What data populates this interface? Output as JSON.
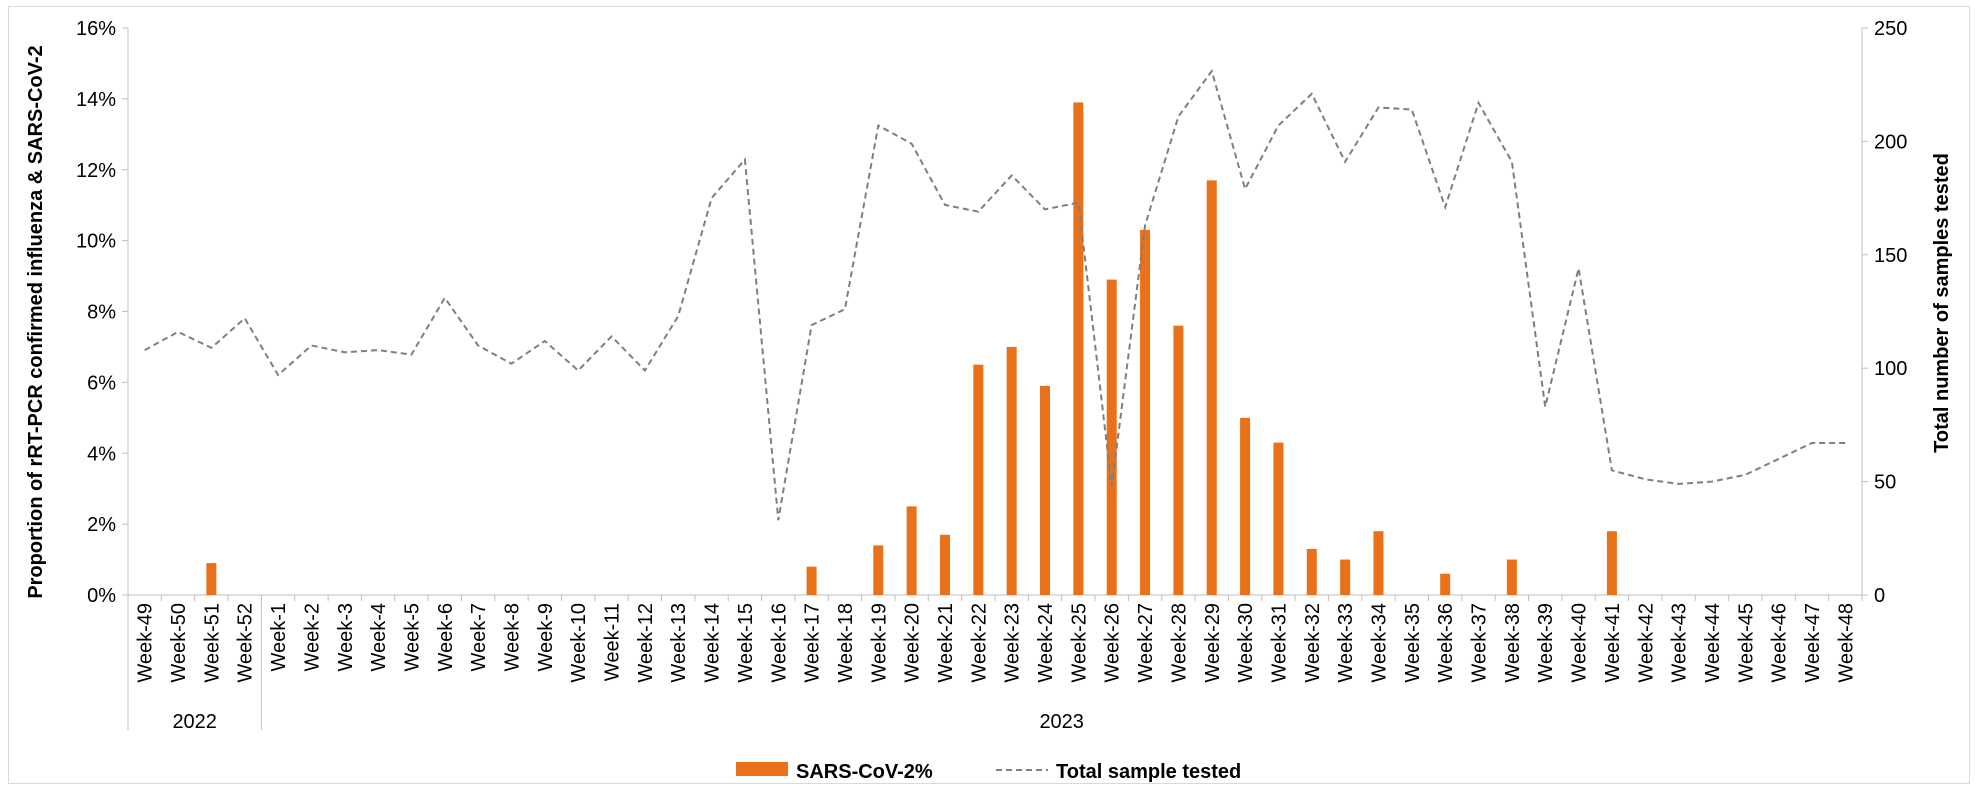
{
  "chart_data": {
    "type": "bar",
    "title": "",
    "ylabel": "Proportion of rRT-PCR confirmed influenza & SARS-CoV-2",
    "y2label": "Total number of samples tested",
    "ylim": [
      0,
      16
    ],
    "y2lim": [
      0,
      250
    ],
    "y_ticks": [
      "0%",
      "2%",
      "4%",
      "6%",
      "8%",
      "10%",
      "12%",
      "14%",
      "16%"
    ],
    "y2_ticks": [
      "0",
      "50",
      "100",
      "150",
      "200",
      "250"
    ],
    "categories": [
      "Week-49",
      "Week-50",
      "Week-51",
      "Week-52",
      "Week-1",
      "Week-2",
      "Week-3",
      "Week-4",
      "Week-5",
      "Week-6",
      "Week-7",
      "Week-8",
      "Week-9",
      "Week-10",
      "Week-11",
      "Week-12",
      "Week-13",
      "Week-14",
      "Week-15",
      "Week-16",
      "Week-17",
      "Week-18",
      "Week-19",
      "Week-20",
      "Week-21",
      "Week-22",
      "Week-23",
      "Week-24",
      "Week-25",
      "Week-26",
      "Week-27",
      "Week-28",
      "Week-29",
      "Week-30",
      "Week-31",
      "Week-32",
      "Week-33",
      "Week-34",
      "Week-35",
      "Week-36",
      "Week-37",
      "Week-38",
      "Week-39",
      "Week-40",
      "Week-41",
      "Week-42",
      "Week-43",
      "Week-44",
      "Week-45",
      "Week-46",
      "Week-47",
      "Week-48"
    ],
    "year_groups": [
      {
        "label": "2022",
        "count": 4
      },
      {
        "label": "2023",
        "count": 48
      }
    ],
    "series": [
      {
        "name": "SARS-CoV-2%",
        "type": "bar",
        "axis": "left",
        "color": "#E8711A",
        "values": [
          0,
          0,
          0.9,
          0,
          0,
          0,
          0,
          0,
          0,
          0,
          0,
          0,
          0,
          0,
          0,
          0,
          0,
          0,
          0,
          0,
          0.8,
          0,
          1.4,
          2.5,
          1.7,
          6.5,
          7.0,
          5.9,
          13.9,
          8.9,
          10.3,
          7.6,
          11.7,
          5.0,
          4.3,
          1.3,
          1.0,
          1.8,
          0,
          0.6,
          0,
          1.0,
          0,
          0,
          1.8,
          0,
          0,
          0,
          0,
          0,
          0,
          0
        ]
      },
      {
        "name": "Total sample tested",
        "type": "line",
        "axis": "right",
        "color": "#7F7F7F",
        "values": [
          108,
          116,
          109,
          122,
          97,
          110,
          107,
          108,
          106,
          131,
          110,
          102,
          112,
          99,
          114,
          99,
          123,
          175,
          192,
          33,
          119,
          126,
          207,
          199,
          172,
          169,
          185,
          170,
          173,
          48,
          163,
          211,
          231,
          179,
          207,
          221,
          191,
          215,
          214,
          171,
          217,
          191,
          83,
          144,
          55,
          51,
          49,
          50,
          53,
          60,
          67,
          67
        ]
      }
    ],
    "legend_position": "bottom-center",
    "grid": false
  }
}
